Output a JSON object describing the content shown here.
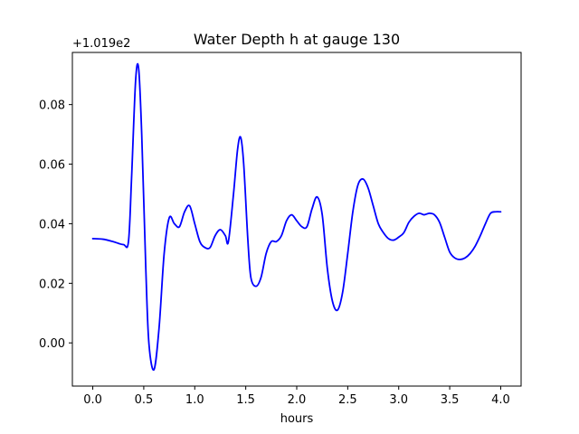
{
  "chart_data": {
    "type": "line",
    "title": "Water Depth h at gauge 130",
    "xlabel": "hours",
    "ylabel": "",
    "offset_text": "+1.019e2",
    "xlim": [
      -0.2,
      4.2
    ],
    "ylim": [
      -0.0145,
      0.0975
    ],
    "x_ticks": [
      0.0,
      0.5,
      1.0,
      1.5,
      2.0,
      2.5,
      3.0,
      3.5,
      4.0
    ],
    "x_tick_labels": [
      "0.0",
      "0.5",
      "1.0",
      "1.5",
      "2.0",
      "2.5",
      "3.0",
      "3.5",
      "4.0"
    ],
    "y_ticks": [
      0.0,
      0.02,
      0.04,
      0.06,
      0.08
    ],
    "y_tick_labels": [
      "0.00",
      "0.02",
      "0.04",
      "0.06",
      "0.08"
    ],
    "grid": false,
    "series": [
      {
        "color": "#0000ff",
        "x": [
          0.0,
          0.1,
          0.2,
          0.3,
          0.35,
          0.38,
          0.42,
          0.45,
          0.48,
          0.52,
          0.55,
          0.6,
          0.65,
          0.7,
          0.75,
          0.8,
          0.85,
          0.9,
          0.95,
          1.0,
          1.05,
          1.1,
          1.15,
          1.2,
          1.25,
          1.3,
          1.33,
          1.38,
          1.42,
          1.45,
          1.48,
          1.52,
          1.55,
          1.6,
          1.65,
          1.7,
          1.75,
          1.8,
          1.85,
          1.9,
          1.95,
          2.0,
          2.05,
          2.1,
          2.15,
          2.2,
          2.25,
          2.3,
          2.35,
          2.4,
          2.45,
          2.5,
          2.55,
          2.6,
          2.65,
          2.7,
          2.75,
          2.8,
          2.85,
          2.9,
          2.95,
          3.0,
          3.05,
          3.1,
          3.15,
          3.2,
          3.25,
          3.3,
          3.35,
          3.4,
          3.45,
          3.5,
          3.55,
          3.6,
          3.65,
          3.7,
          3.75,
          3.8,
          3.85,
          3.9,
          3.95,
          4.0
        ],
        "y": [
          0.035,
          0.0348,
          0.034,
          0.033,
          0.034,
          0.055,
          0.088,
          0.092,
          0.07,
          0.025,
          0.0,
          -0.009,
          0.005,
          0.03,
          0.042,
          0.04,
          0.039,
          0.044,
          0.046,
          0.04,
          0.034,
          0.032,
          0.032,
          0.036,
          0.038,
          0.036,
          0.034,
          0.05,
          0.065,
          0.069,
          0.06,
          0.035,
          0.022,
          0.019,
          0.022,
          0.03,
          0.034,
          0.034,
          0.036,
          0.041,
          0.043,
          0.041,
          0.039,
          0.039,
          0.045,
          0.049,
          0.043,
          0.025,
          0.014,
          0.011,
          0.017,
          0.03,
          0.044,
          0.053,
          0.055,
          0.052,
          0.046,
          0.04,
          0.037,
          0.035,
          0.0345,
          0.0355,
          0.037,
          0.0405,
          0.0425,
          0.0435,
          0.043,
          0.0435,
          0.043,
          0.0405,
          0.0355,
          0.0305,
          0.0285,
          0.028,
          0.0285,
          0.03,
          0.0325,
          0.036,
          0.04,
          0.0435,
          0.044,
          0.044
        ]
      }
    ]
  }
}
